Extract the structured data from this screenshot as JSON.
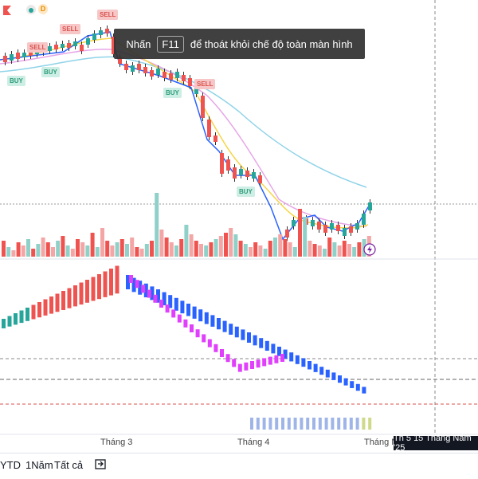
{
  "top_icons": {
    "icon1": "close-icon",
    "icon2": "eye-icon",
    "icon3_letter": "D"
  },
  "toast": {
    "before": "Nhấn",
    "key": "F11",
    "after": "để thoát khỏi chế độ toàn màn hình"
  },
  "signals": [
    {
      "label": "SELL",
      "type": "sell"
    },
    {
      "label": "SELL",
      "type": "sell"
    },
    {
      "label": "SELL",
      "type": "sell"
    },
    {
      "label": "SELL",
      "type": "sell"
    },
    {
      "label": "BUY",
      "type": "buy"
    },
    {
      "label": "BUY",
      "type": "buy"
    },
    {
      "label": "BUY",
      "type": "buy"
    },
    {
      "label": "BUY",
      "type": "buy"
    }
  ],
  "x_axis": {
    "labels": [
      "Tháng 3",
      "Tháng 4",
      "Tháng N"
    ]
  },
  "crosshair_date": "Th 5 15 Tháng Năm '25",
  "range_buttons": [
    "YTD",
    "1Năm",
    "Tất cả"
  ],
  "colors": {
    "up": "#26a69a",
    "down": "#ef5350",
    "blue": "#2962ff",
    "magenta": "#e040fb",
    "ma_yellow": "#f5d547",
    "ma_pink": "#e6a6e6",
    "ma_cyan": "#8fd3e8"
  }
}
